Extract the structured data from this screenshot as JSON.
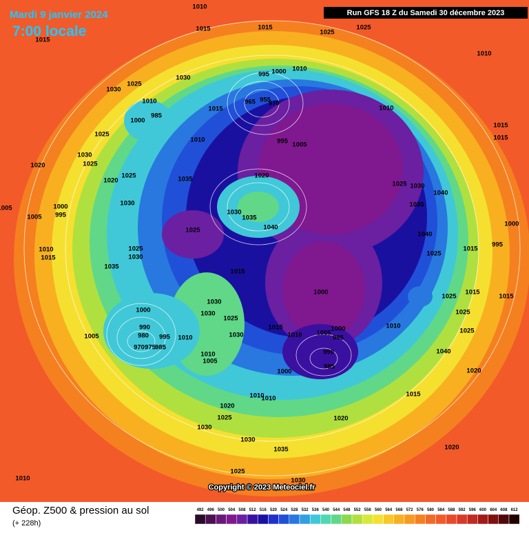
{
  "header": {
    "date": "Mardi 9 janvier 2024",
    "time": "7:00 locale",
    "run": "Run GFS 18 Z du Samedi 30 décembre 2023"
  },
  "footer": {
    "title": "Géop. Z500 & pression au sol",
    "lead": "(+ 228h)",
    "copyright": "Copyright © 2023 Meteociel.fr"
  },
  "map": {
    "isobar_labels": [
      "1010",
      "1015",
      "1015",
      "1025",
      "1025",
      "1015",
      "1010",
      "1030",
      "1025",
      "1030",
      "1010",
      "1000",
      "995",
      "965",
      "955",
      "970",
      "1010",
      "985",
      "1000",
      "1015",
      "1010",
      "1025",
      "1010",
      "995",
      "1005",
      "1015",
      "1015",
      "1030",
      "1025",
      "1020",
      "1020",
      "1025",
      "1035",
      "1020",
      "1025",
      "1030",
      "1040",
      "1030",
      "1000",
      "995",
      "1005",
      "1030",
      "1035",
      "1035",
      "1040",
      "1025",
      "1005",
      "1040",
      "1015",
      "1000",
      "995",
      "1025",
      "1030",
      "1010",
      "1015",
      "1025",
      "1035",
      "1015",
      "1000",
      "1025",
      "1015",
      "1015",
      "1030",
      "1030",
      "1025",
      "1000",
      "1025",
      "1010",
      "1015",
      "1010",
      "1005",
      "1000",
      "995",
      "1030",
      "990",
      "980",
      "1005",
      "995",
      "1010",
      "1025",
      "970",
      "975",
      "985",
      "990",
      "985",
      "1010",
      "1005",
      "1040",
      "1000",
      "1020",
      "1020",
      "1010",
      "1010",
      "1025",
      "1030",
      "1020",
      "1015",
      "1030",
      "1035",
      "1020",
      "1025",
      "1030",
      "1010"
    ]
  },
  "legend": {
    "levels": [
      492,
      496,
      500,
      504,
      508,
      512,
      516,
      520,
      524,
      528,
      532,
      536,
      540,
      544,
      548,
      552,
      556,
      560,
      564,
      568,
      572,
      576,
      580,
      584,
      588,
      592,
      596,
      600,
      604,
      608,
      612
    ],
    "colors": [
      "#2a0a2a",
      "#4a1050",
      "#6a1878",
      "#801890",
      "#6a20a0",
      "#3a10a0",
      "#1a10a0",
      "#2030c8",
      "#2050d8",
      "#2878e0",
      "#30a0e0",
      "#40c8d8",
      "#50d8b0",
      "#60d888",
      "#8cd850",
      "#b0e040",
      "#d8e838",
      "#f5e030",
      "#f8c828",
      "#f8b020",
      "#f79a1f",
      "#f58020",
      "#f26a28",
      "#f25a2a",
      "#e84a28",
      "#d83a28",
      "#c02a20",
      "#a01a18",
      "#801010",
      "#500808",
      "#200000"
    ]
  }
}
